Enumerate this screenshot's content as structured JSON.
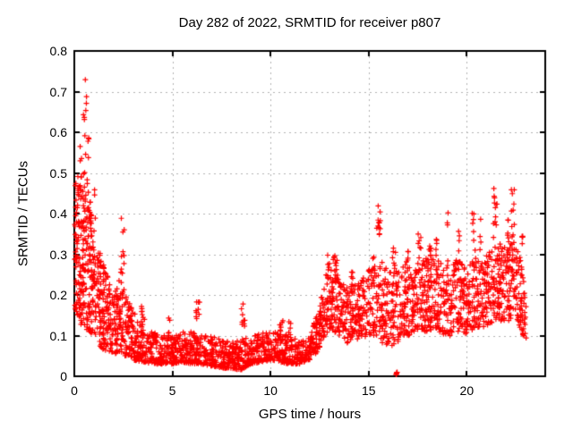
{
  "chart_data": {
    "type": "scatter",
    "title": "Day 282 of 2022, SRMTID for receiver p807",
    "xlabel": "GPS time / hours",
    "ylabel": "SRMTID / TECUs",
    "xlim": [
      0,
      24
    ],
    "ylim": [
      0,
      0.8
    ],
    "xticks": [
      0,
      5,
      10,
      15,
      20
    ],
    "xtick_labels": [
      "0",
      "5",
      "10",
      "15",
      "20"
    ],
    "yticks": [
      0,
      0.1,
      0.2,
      0.3,
      0.4,
      0.5,
      0.6,
      0.7,
      0.8
    ],
    "ytick_labels": [
      "0",
      "0.1",
      "0.2",
      "0.3",
      "0.4",
      "0.5",
      "0.6",
      "0.7",
      "0.8"
    ],
    "grid": true,
    "grid_style": "dotted",
    "legend_position": "none",
    "marker": "+",
    "marker_color": "#ff0000",
    "grid_color": "#b0b0b0",
    "axis_color": "#000000",
    "background_color": "#ffffff",
    "point_count_estimate": 3000,
    "notable_points": [
      [
        0.6,
        0.735
      ],
      [
        0.62,
        0.71
      ],
      [
        0.33,
        0.58
      ],
      [
        0.72,
        0.61
      ],
      [
        2.45,
        0.39
      ],
      [
        13.3,
        0.31
      ],
      [
        15.5,
        0.42
      ],
      [
        16.4,
        0.005
      ],
      [
        19.05,
        0.41
      ],
      [
        20.7,
        0.42
      ],
      [
        21.45,
        0.47
      ],
      [
        22.35,
        0.46
      ]
    ],
    "series": [
      {
        "name": "SRMTID",
        "summary": "Dense + markers: 0.17-0.74 TECUs near 0-1 h decaying to a low band 0.02-0.11 between 3-12 h, rising after 12 h to a 0.08-0.33 band with vertical spikes reaching ~0.42 at 15.5 h and ~0.47 near 21.5 h; isolated near-zero cluster at 16.4 h; data ends ~23 h",
        "synthesis": {
          "seed": 42,
          "envelope": [
            [
              0.0,
              0.17,
              0.46
            ],
            [
              0.3,
              0.13,
              0.52
            ],
            [
              0.6,
              0.11,
              0.5
            ],
            [
              0.9,
              0.1,
              0.42
            ],
            [
              1.2,
              0.08,
              0.33
            ],
            [
              1.6,
              0.06,
              0.26
            ],
            [
              2.0,
              0.05,
              0.2
            ],
            [
              2.3,
              0.06,
              0.24
            ],
            [
              2.6,
              0.05,
              0.2
            ],
            [
              3.0,
              0.04,
              0.16
            ],
            [
              3.5,
              0.035,
              0.13
            ],
            [
              4.0,
              0.03,
              0.11
            ],
            [
              4.5,
              0.03,
              0.1
            ],
            [
              5.0,
              0.03,
              0.1
            ],
            [
              5.5,
              0.035,
              0.11
            ],
            [
              6.0,
              0.03,
              0.11
            ],
            [
              6.5,
              0.03,
              0.1
            ],
            [
              7.0,
              0.025,
              0.1
            ],
            [
              7.5,
              0.02,
              0.09
            ],
            [
              8.0,
              0.02,
              0.085
            ],
            [
              8.5,
              0.015,
              0.09
            ],
            [
              9.0,
              0.03,
              0.1
            ],
            [
              9.5,
              0.035,
              0.105
            ],
            [
              10.0,
              0.04,
              0.11
            ],
            [
              10.5,
              0.035,
              0.11
            ],
            [
              11.0,
              0.03,
              0.1
            ],
            [
              11.5,
              0.03,
              0.09
            ],
            [
              12.0,
              0.04,
              0.1
            ],
            [
              12.4,
              0.06,
              0.16
            ],
            [
              12.8,
              0.1,
              0.24
            ],
            [
              13.2,
              0.11,
              0.27
            ],
            [
              13.6,
              0.09,
              0.24
            ],
            [
              14.0,
              0.08,
              0.22
            ],
            [
              14.5,
              0.09,
              0.23
            ],
            [
              15.0,
              0.1,
              0.26
            ],
            [
              15.4,
              0.1,
              0.32
            ],
            [
              15.7,
              0.08,
              0.3
            ],
            [
              16.0,
              0.07,
              0.26
            ],
            [
              16.4,
              0.08,
              0.26
            ],
            [
              16.8,
              0.1,
              0.28
            ],
            [
              17.2,
              0.1,
              0.27
            ],
            [
              17.6,
              0.11,
              0.29
            ],
            [
              18.0,
              0.11,
              0.29
            ],
            [
              18.4,
              0.12,
              0.3
            ],
            [
              18.8,
              0.1,
              0.27
            ],
            [
              19.2,
              0.1,
              0.28
            ],
            [
              19.6,
              0.11,
              0.29
            ],
            [
              20.0,
              0.1,
              0.26
            ],
            [
              20.4,
              0.12,
              0.3
            ],
            [
              20.8,
              0.12,
              0.29
            ],
            [
              21.2,
              0.13,
              0.31
            ],
            [
              21.6,
              0.14,
              0.33
            ],
            [
              22.0,
              0.13,
              0.32
            ],
            [
              22.4,
              0.15,
              0.33
            ],
            [
              22.7,
              0.12,
              0.3
            ],
            [
              23.05,
              0.08,
              0.26
            ]
          ],
          "density": [
            [
              0.02,
              0.3,
              70
            ],
            [
              0.3,
              0.6,
              75
            ],
            [
              0.6,
              1.0,
              95
            ],
            [
              1.0,
              1.5,
              85
            ],
            [
              1.5,
              2.0,
              75
            ],
            [
              2.0,
              2.5,
              75
            ],
            [
              2.5,
              3.0,
              65
            ],
            [
              3.0,
              4.0,
              115
            ],
            [
              4.0,
              5.0,
              110
            ],
            [
              5.0,
              6.0,
              110
            ],
            [
              6.0,
              7.0,
              110
            ],
            [
              7.0,
              8.0,
              110
            ],
            [
              8.0,
              9.0,
              110
            ],
            [
              9.0,
              10.0,
              110
            ],
            [
              10.0,
              11.0,
              110
            ],
            [
              11.0,
              12.0,
              110
            ],
            [
              12.0,
              13.0,
              125
            ],
            [
              13.0,
              14.0,
              120
            ],
            [
              14.0,
              15.0,
              115
            ],
            [
              15.0,
              16.0,
              115
            ],
            [
              16.0,
              17.0,
              110
            ],
            [
              17.0,
              18.0,
              115
            ],
            [
              18.0,
              19.0,
              115
            ],
            [
              19.0,
              20.0,
              115
            ],
            [
              20.0,
              21.0,
              115
            ],
            [
              21.0,
              22.0,
              125
            ],
            [
              22.0,
              23.05,
              130
            ]
          ],
          "skew": {
            "mid": 1.6,
            "outer": 1.2,
            "mid_range": [
              3,
              12
            ]
          },
          "spikes": [
            [
              0.55,
              0.1,
              0.74,
              9
            ],
            [
              0.33,
              0.04,
              0.58,
              3
            ],
            [
              0.72,
              0.05,
              0.61,
              4
            ],
            [
              1.05,
              0.05,
              0.47,
              3
            ],
            [
              2.45,
              0.1,
              0.39,
              12
            ],
            [
              3.5,
              0.08,
              0.175,
              7
            ],
            [
              4.8,
              0.07,
              0.15,
              5
            ],
            [
              6.3,
              0.1,
              0.185,
              9
            ],
            [
              8.6,
              0.1,
              0.18,
              9
            ],
            [
              10.55,
              0.08,
              0.15,
              7
            ],
            [
              11.0,
              0.08,
              0.14,
              5
            ],
            [
              12.9,
              0.1,
              0.3,
              6
            ],
            [
              13.3,
              0.12,
              0.31,
              10
            ],
            [
              14.2,
              0.08,
              0.26,
              5
            ],
            [
              15.5,
              0.1,
              0.42,
              12
            ],
            [
              16.3,
              0.08,
              0.33,
              7
            ],
            [
              17.0,
              0.07,
              0.31,
              5
            ],
            [
              17.6,
              0.08,
              0.35,
              7
            ],
            [
              18.1,
              0.08,
              0.33,
              7
            ],
            [
              18.45,
              0.06,
              0.34,
              5
            ],
            [
              19.05,
              0.05,
              0.41,
              4
            ],
            [
              19.6,
              0.06,
              0.37,
              4
            ],
            [
              20.35,
              0.08,
              0.42,
              7
            ],
            [
              20.7,
              0.05,
              0.42,
              4
            ],
            [
              21.45,
              0.1,
              0.47,
              12
            ],
            [
              22.1,
              0.06,
              0.43,
              6
            ],
            [
              22.35,
              0.08,
              0.46,
              10
            ],
            [
              22.8,
              0.06,
              0.35,
              5
            ]
          ],
          "clusters": [
            [
              16.42,
              0.035,
              0.002,
              0.012,
              8
            ]
          ]
        }
      }
    ]
  }
}
